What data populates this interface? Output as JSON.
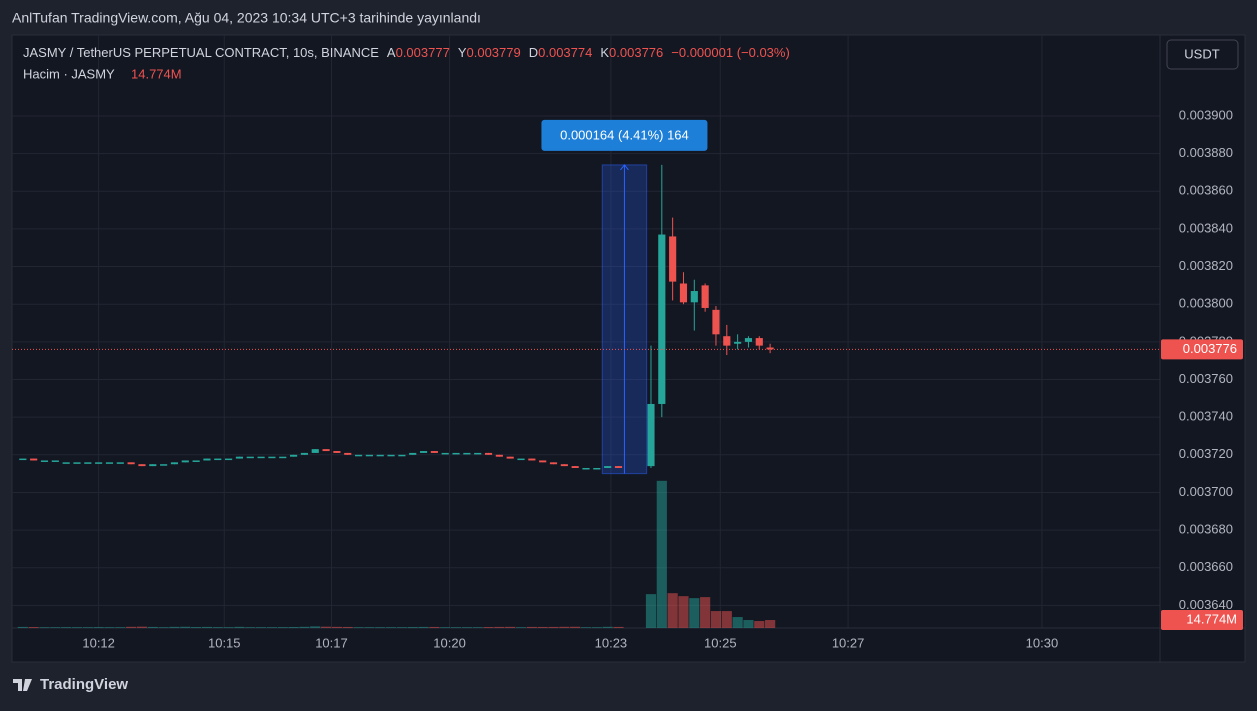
{
  "page_header": "AnlTufan TradingView.com, Ağu 04, 2023 10:34 UTC+3 tarihinde yayınlandı",
  "footer_brand": "TradingView",
  "currency_button": "USDT",
  "chart_data": {
    "type": "candlestick",
    "title": "JASMY / TetherUS PERPETUAL CONTRACT, 10s, BINANCE",
    "ohlc_legend": [
      {
        "key": "A",
        "value": "0.003777"
      },
      {
        "key": "Y",
        "value": "0.003779"
      },
      {
        "key": "D",
        "value": "0.003774"
      },
      {
        "key": "K",
        "value": "0.003776"
      }
    ],
    "change": "−0.000001 (−0.03%)",
    "volume_title": "Hacim · JASMY",
    "volume_value_label": "14.774M",
    "up_color": "#26a69a",
    "down_color": "#ef5350",
    "grid": true,
    "xlim": [
      -1,
      105
    ],
    "ylim": [
      0.003628,
      0.003943
    ],
    "volume_ylim": [
      0,
      1100000000
    ],
    "last_price": 0.003776,
    "yticks": [
      {
        "value": 0.00364,
        "label": "0.003640"
      },
      {
        "value": 0.00366,
        "label": "0.003660"
      },
      {
        "value": 0.00368,
        "label": "0.003680"
      },
      {
        "value": 0.0037,
        "label": "0.003700"
      },
      {
        "value": 0.00372,
        "label": "0.003720"
      },
      {
        "value": 0.00374,
        "label": "0.003740"
      },
      {
        "value": 0.00376,
        "label": "0.003760"
      },
      {
        "value": 0.00378,
        "label": "0.003780"
      },
      {
        "value": 0.0038,
        "label": "0.003800"
      },
      {
        "value": 0.00382,
        "label": "0.003820"
      },
      {
        "value": 0.00384,
        "label": "0.003840"
      },
      {
        "value": 0.00386,
        "label": "0.003860"
      },
      {
        "value": 0.00388,
        "label": "0.003880"
      },
      {
        "value": 0.0039,
        "label": "0.003900"
      }
    ],
    "xticks": [
      {
        "value": 7,
        "label": "10:12"
      },
      {
        "value": 18.6,
        "label": "10:15"
      },
      {
        "value": 28.5,
        "label": "10:17"
      },
      {
        "value": 39.4,
        "label": "10:20"
      },
      {
        "value": 54.3,
        "label": "10:23"
      },
      {
        "value": 64.4,
        "label": "10:25"
      },
      {
        "value": 76.2,
        "label": "10:27"
      },
      {
        "value": 94.1,
        "label": "10:30"
      }
    ],
    "x": [
      0,
      1,
      2,
      3,
      4,
      5,
      6,
      7,
      8,
      9,
      10,
      11,
      12,
      13,
      14,
      15,
      16,
      17,
      18,
      19,
      20,
      21,
      22,
      23,
      24,
      25,
      26,
      27,
      28,
      29,
      30,
      31,
      32,
      33,
      34,
      35,
      36,
      37,
      38,
      39,
      40,
      41,
      42,
      43,
      44,
      45,
      46,
      47,
      48,
      49,
      50,
      51,
      52,
      53,
      54,
      55,
      58,
      59,
      60,
      61,
      62,
      63,
      64,
      65,
      66,
      67,
      68,
      69
    ],
    "open": [
      0.003718,
      0.003718,
      0.003717,
      0.003717,
      0.003716,
      0.003716,
      0.003716,
      0.003716,
      0.003716,
      0.003716,
      0.003716,
      0.003715,
      0.003714,
      0.003715,
      0.003715,
      0.003716,
      0.003717,
      0.003717,
      0.003718,
      0.003718,
      0.003718,
      0.003719,
      0.003719,
      0.003719,
      0.003719,
      0.003719,
      0.00372,
      0.003721,
      0.003723,
      0.003722,
      0.003721,
      0.00372,
      0.00372,
      0.00372,
      0.00372,
      0.00372,
      0.00372,
      0.003721,
      0.003722,
      0.003721,
      0.003721,
      0.003721,
      0.003721,
      0.003721,
      0.00372,
      0.003719,
      0.003718,
      0.003718,
      0.003717,
      0.003716,
      0.003715,
      0.003714,
      0.003713,
      0.003713,
      0.003713,
      0.003714,
      0.003714,
      0.003747,
      0.003836,
      0.003811,
      0.003801,
      0.00381,
      0.003797,
      0.003783,
      0.003779,
      0.00378,
      0.003782,
      0.003777
    ],
    "high": [
      0.003718,
      0.003718,
      0.003717,
      0.003717,
      0.003716,
      0.003716,
      0.003716,
      0.003716,
      0.003716,
      0.003716,
      0.003716,
      0.003715,
      0.003715,
      0.003715,
      0.003716,
      0.003717,
      0.003717,
      0.003718,
      0.003718,
      0.003718,
      0.003719,
      0.003719,
      0.003719,
      0.003719,
      0.003719,
      0.00372,
      0.003721,
      0.003723,
      0.003723,
      0.003722,
      0.003721,
      0.00372,
      0.00372,
      0.00372,
      0.00372,
      0.00372,
      0.003721,
      0.003722,
      0.003722,
      0.003721,
      0.003721,
      0.003721,
      0.003721,
      0.003721,
      0.00372,
      0.003719,
      0.003718,
      0.003718,
      0.003717,
      0.003716,
      0.003715,
      0.003714,
      0.003713,
      0.003713,
      0.003714,
      0.003714,
      0.003778,
      0.003874,
      0.003846,
      0.003817,
      0.003813,
      0.003811,
      0.003799,
      0.003789,
      0.003784,
      0.003783,
      0.003783,
      0.003779
    ],
    "low": [
      0.003718,
      0.003717,
      0.003717,
      0.003717,
      0.003716,
      0.003716,
      0.003716,
      0.003716,
      0.003716,
      0.003716,
      0.003715,
      0.003714,
      0.003714,
      0.003715,
      0.003715,
      0.003716,
      0.003717,
      0.003717,
      0.003718,
      0.003718,
      0.003718,
      0.003719,
      0.003719,
      0.003719,
      0.003719,
      0.003719,
      0.00372,
      0.003721,
      0.003722,
      0.003721,
      0.00372,
      0.00372,
      0.00372,
      0.00372,
      0.00372,
      0.00372,
      0.00372,
      0.003721,
      0.003721,
      0.003721,
      0.003721,
      0.003721,
      0.003721,
      0.00372,
      0.003719,
      0.003718,
      0.003718,
      0.003717,
      0.003716,
      0.003715,
      0.003714,
      0.003713,
      0.003713,
      0.003713,
      0.003713,
      0.003713,
      0.003713,
      0.00374,
      0.003802,
      0.0038,
      0.003786,
      0.003796,
      0.003778,
      0.003773,
      0.003776,
      0.003777,
      0.003776,
      0.003774
    ],
    "close": [
      0.003718,
      0.003717,
      0.003717,
      0.003717,
      0.003716,
      0.003716,
      0.003716,
      0.003716,
      0.003716,
      0.003716,
      0.003715,
      0.003714,
      0.003715,
      0.003715,
      0.003716,
      0.003717,
      0.003717,
      0.003718,
      0.003718,
      0.003718,
      0.003719,
      0.003719,
      0.003719,
      0.003719,
      0.003719,
      0.00372,
      0.003721,
      0.003723,
      0.003722,
      0.003721,
      0.00372,
      0.00372,
      0.00372,
      0.00372,
      0.00372,
      0.00372,
      0.003721,
      0.003722,
      0.003721,
      0.003721,
      0.003721,
      0.003721,
      0.003721,
      0.00372,
      0.003719,
      0.003718,
      0.003718,
      0.003717,
      0.003716,
      0.003715,
      0.003714,
      0.003713,
      0.003713,
      0.003713,
      0.003714,
      0.003713,
      0.003747,
      0.003837,
      0.003812,
      0.003801,
      0.003807,
      0.003798,
      0.003784,
      0.003778,
      0.00378,
      0.003782,
      0.003778,
      0.003776
    ],
    "volume": [
      2000000,
      1800000,
      1500000,
      1500000,
      1600000,
      1500000,
      1500000,
      1700000,
      1500000,
      1500000,
      2200000,
      2500000,
      2000000,
      1500000,
      2100000,
      2300000,
      1800000,
      2000000,
      1600000,
      1500000,
      2100000,
      1500000,
      1500000,
      1500000,
      1600000,
      1900000,
      2200000,
      3000000,
      2400000,
      2100000,
      1900000,
      1500000,
      1500000,
      1500000,
      1500000,
      1500000,
      1800000,
      2000000,
      1900000,
      1500000,
      1500000,
      1500000,
      1500000,
      1800000,
      2000000,
      2100000,
      1500000,
      2000000,
      1900000,
      2000000,
      2200000,
      2300000,
      1500000,
      1500000,
      2200000,
      2000000,
      62800000,
      273000000,
      64600000,
      59100000,
      55400000,
      57300000,
      31400000,
      31400000,
      20300000,
      14800000,
      12900000,
      14774000
    ],
    "annotation": {
      "label": "0.000164 (4.41%) 164",
      "x": [
        53.5,
        57.6
      ],
      "y": [
        0.00371,
        0.003874
      ]
    }
  }
}
